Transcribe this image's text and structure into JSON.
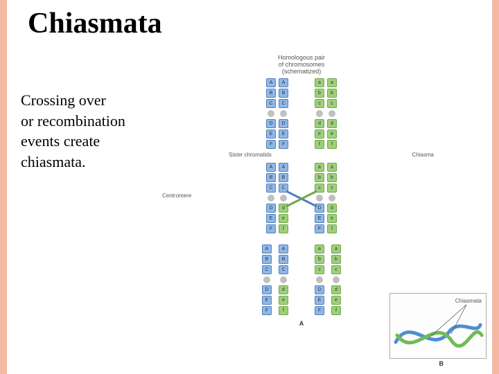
{
  "title": {
    "text": "Chiasmata",
    "fontsize": 42,
    "color": "#000000"
  },
  "body": {
    "lines": [
      "Crossing over",
      "or recombination",
      "events create",
      "chiasmata."
    ],
    "fontsize": 22,
    "color": "#000000"
  },
  "side_bars": {
    "color": "#f3b9a2",
    "width": 10
  },
  "labels": {
    "top": "Homologous pair\nof chromosomes\n(schematized)",
    "sister": "Sister chromatids",
    "chiasma": "Chiasma",
    "centromere": "Centromere",
    "chiasmata": "Chiasmata",
    "colA": "A",
    "colB": "B"
  },
  "colors": {
    "dom_fill": "#8fb8e8",
    "dom_border": "#4f7fbd",
    "rec_fill": "#9ed07a",
    "rec_border": "#6fa84c",
    "centro": "#c0c0c0",
    "text": "#333333",
    "label": "#555555",
    "inset_stroke_blue": "#4f8ecf",
    "inset_stroke_green": "#6fbb55"
  },
  "genes_dom": [
    "A",
    "B",
    "C",
    "D",
    "E",
    "F"
  ],
  "genes_rec": [
    "a",
    "b",
    "c",
    "d",
    "e",
    "f"
  ],
  "rows": [
    {
      "cross": false
    },
    {
      "cross": true,
      "swap_from": 3
    },
    {
      "cross": true,
      "swap_from": 3,
      "separated": true
    }
  ]
}
